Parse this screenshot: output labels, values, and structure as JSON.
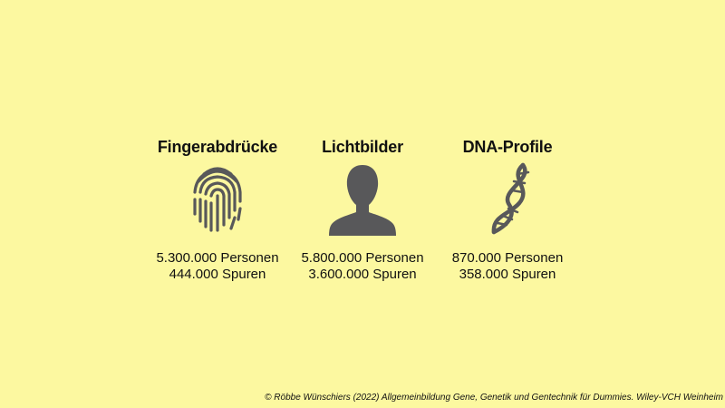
{
  "colors": {
    "background": "#fcf8a0",
    "icon": "#58585a",
    "text": "#111111"
  },
  "columns": [
    {
      "heading": "Fingerabdrücke",
      "icon": "fingerprint-icon",
      "persons": "5.300.000 Personen",
      "traces": "444.000 Spuren"
    },
    {
      "heading": "Lichtbilder",
      "icon": "person-silhouette-icon",
      "persons": "5.800.000 Personen",
      "traces": "3.600.000 Spuren"
    },
    {
      "heading": "DNA-Profile",
      "icon": "dna-icon",
      "persons": "870.000 Personen",
      "traces": "358.000 Spuren"
    }
  ],
  "footer": {
    "credit": "© Röbbe Wünschiers (2022) Allgemeinbildung Gene, Genetik und Gentechnik für Dummies. Wiley-VCH Weinheim"
  }
}
